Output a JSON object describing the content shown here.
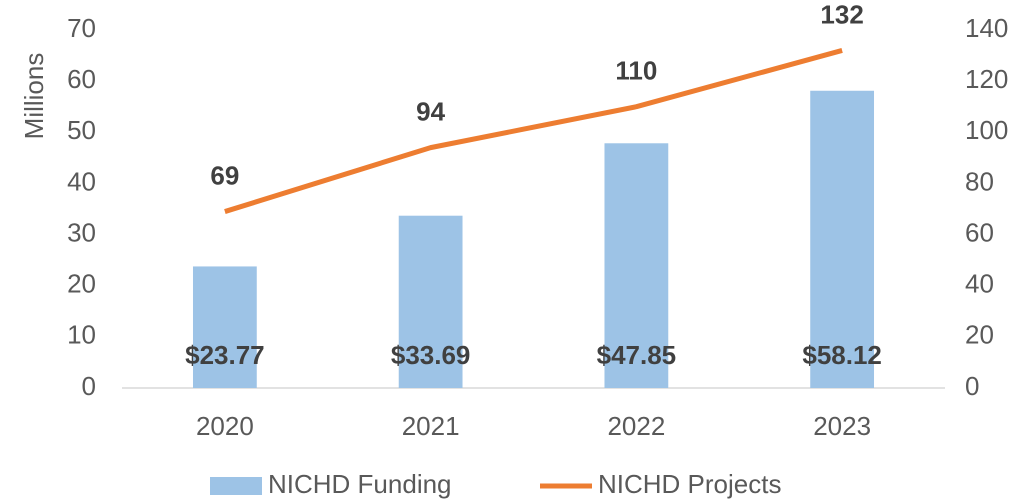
{
  "chart_data": {
    "type": "bar",
    "y_axis_label": "Millions",
    "categories": [
      "2020",
      "2021",
      "2022",
      "2023"
    ],
    "series": [
      {
        "name": "NICHD Funding",
        "type": "bar",
        "color": "#9dc3e6",
        "values": [
          23.77,
          33.69,
          47.85,
          58.12
        ],
        "value_labels": [
          "$23.77",
          "$33.69",
          "$47.85",
          "$58.12"
        ]
      },
      {
        "name": "NICHD Projects",
        "type": "line",
        "axis": "y2",
        "color": "#ed7d31",
        "values": [
          69,
          94,
          110,
          132
        ]
      }
    ],
    "ylim": [
      0,
      70
    ],
    "yticks": [
      0,
      10,
      20,
      30,
      40,
      50,
      60,
      70
    ],
    "y2lim": [
      0,
      140
    ],
    "y2ticks": [
      0,
      20,
      40,
      60,
      80,
      100,
      120,
      140
    ],
    "grid": false,
    "legend": "bottom"
  }
}
